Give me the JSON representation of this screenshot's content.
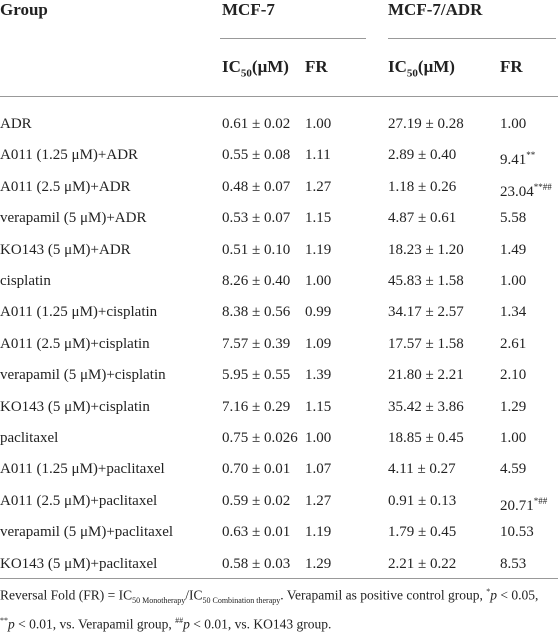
{
  "table": {
    "header": {
      "group": "Group",
      "groups": [
        "MCF-7",
        "MCF-7/ADR"
      ],
      "sub": [
        {
          "text": "IC",
          "sub": "50",
          "suffix": "(μM)"
        },
        "FR",
        {
          "text": "IC",
          "sub": "50",
          "suffix": "(μM)"
        },
        "FR"
      ]
    },
    "rows": [
      [
        "ADR",
        "0.61 ± 0.02",
        "1.00",
        "27.19 ± 0.28",
        "1.00"
      ],
      [
        "A011 (1.25 μM)+ADR",
        "0.55 ± 0.08",
        "1.11",
        "2.89 ± 0.40",
        {
          "text": "9.41",
          "sup": "**"
        }
      ],
      [
        "A011 (2.5 μM)+ADR",
        "0.48 ± 0.07",
        "1.27",
        "1.18 ± 0.26",
        {
          "text": "23.04",
          "sup": "**##"
        }
      ],
      [
        "verapamil (5 μM)+ADR",
        "0.53 ± 0.07",
        "1.15",
        "4.87 ± 0.61",
        "5.58"
      ],
      [
        "KO143 (5 μM)+ADR",
        "0.51 ± 0.10",
        "1.19",
        "18.23 ± 1.20",
        "1.49"
      ],
      [
        "cisplatin",
        "8.26 ± 0.40",
        "1.00",
        "45.83 ± 1.58",
        "1.00"
      ],
      [
        "A011 (1.25 μM)+cisplatin",
        "8.38 ± 0.56",
        "0.99",
        "34.17 ± 2.57",
        "1.34"
      ],
      [
        "A011 (2.5 μM)+cisplatin",
        "7.57 ± 0.39",
        "1.09",
        "17.57 ± 1.58",
        "2.61"
      ],
      [
        "verapamil (5 μM)+cisplatin",
        "5.95 ± 0.55",
        "1.39",
        "21.80 ± 2.21",
        "2.10"
      ],
      [
        "KO143 (5 μM)+cisplatin",
        "7.16 ± 0.29",
        "1.15",
        "35.42 ± 3.86",
        "1.29"
      ],
      [
        "paclitaxel",
        "0.75 ± 0.026",
        "1.00",
        "18.85 ± 0.45",
        "1.00"
      ],
      [
        "A011 (1.25 μM)+paclitaxel",
        "0.70 ± 0.01",
        "1.07",
        "4.11 ± 0.27",
        "4.59"
      ],
      [
        "A011 (2.5 μM)+paclitaxel",
        "0.59 ± 0.02",
        "1.27",
        "0.91 ± 0.13",
        {
          "text": "20.71",
          "sup": "*##"
        }
      ],
      [
        "verapamil (5 μM)+paclitaxel",
        "0.63 ± 0.01",
        "1.19",
        "1.79 ± 0.45",
        "10.53"
      ],
      [
        "KO143 (5 μM)+paclitaxel",
        "0.58 ± 0.03",
        "1.29",
        "2.21 ± 0.22",
        "8.53"
      ]
    ],
    "footnote": [
      {
        "text": "Reversal Fold (FR) = IC"
      },
      {
        "text": "50 Monotherapy",
        "style": "sub"
      },
      {
        "text": "/IC"
      },
      {
        "text": "50 Combination therapy",
        "style": "sub"
      },
      {
        "text": ". Verapamil as positive control group, "
      },
      {
        "text": "*",
        "style": "sup"
      },
      {
        "text": "p",
        "style": "italic"
      },
      {
        "text": " < 0.05, "
      },
      {
        "text": "**",
        "style": "sup"
      },
      {
        "text": "p",
        "style": "italic"
      },
      {
        "text": " < 0.01, vs. Verapamil group, "
      },
      {
        "text": "##",
        "style": "sup"
      },
      {
        "text": "p",
        "style": "italic"
      },
      {
        "text": " < 0.01, vs. KO143 group."
      }
    ]
  }
}
